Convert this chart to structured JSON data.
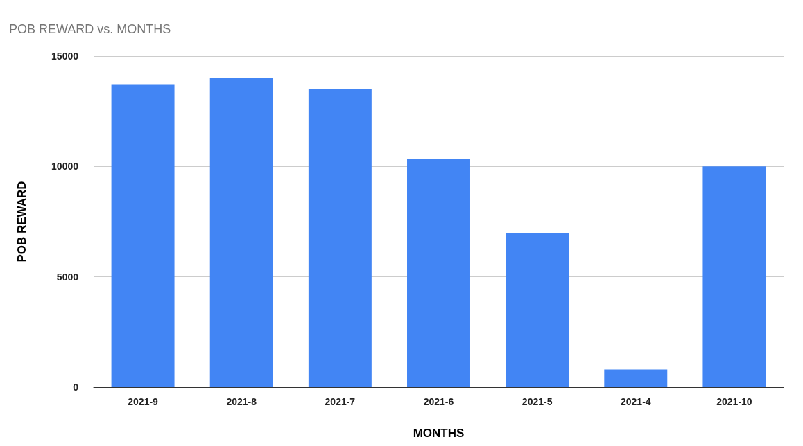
{
  "chart_data": {
    "type": "bar",
    "title": "POB REWARD vs. MONTHS",
    "xlabel": "MONTHS",
    "ylabel": "POB REWARD",
    "categories": [
      "2021-9",
      "2021-8",
      "2021-7",
      "2021-6",
      "2021-5",
      "2021-4",
      "2021-10"
    ],
    "values": [
      13700,
      14000,
      13500,
      10350,
      7000,
      800,
      10000
    ],
    "color": "#4285f4",
    "ylim": [
      0,
      15000
    ],
    "yticks": [
      0,
      5000,
      10000,
      15000
    ],
    "grid": "y"
  }
}
